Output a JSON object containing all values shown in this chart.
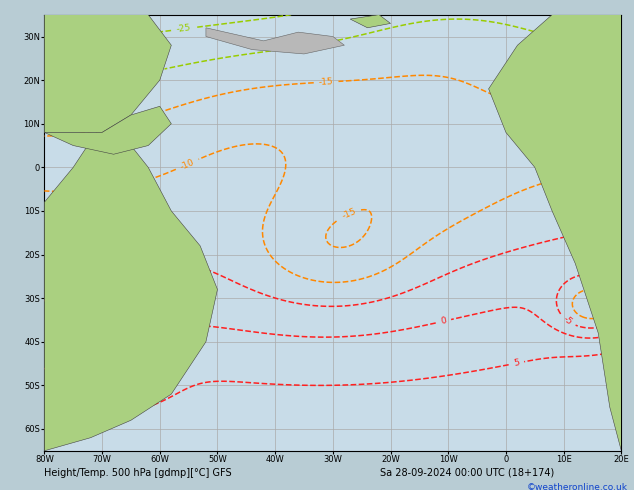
{
  "title_bottom": "Height/Temp. 500 hPa [gdmp][°C] GFS",
  "datetime_str": "Sa 28-09-2024 00:00 UTC (18+174)",
  "credit": "©weatheronline.co.uk",
  "bg_color": "#c8dce8",
  "land_green": "#aad080",
  "land_gray": "#b8b8b8",
  "grid_color": "#aaaaaa",
  "c_black": "#000000",
  "c_red": "#ff2020",
  "c_orange": "#ff8800",
  "c_cyan": "#00bbbb",
  "c_green_y": "#99cc00",
  "c_blue": "#2255ff",
  "xlim": [
    -80,
    20
  ],
  "ylim": [
    -65,
    35
  ],
  "xticks": [
    -80,
    -70,
    -60,
    -50,
    -40,
    -30,
    -20,
    -10,
    0,
    10,
    20
  ],
  "yticks": [
    -60,
    -50,
    -40,
    -30,
    -20,
    -10,
    0,
    10,
    20,
    30
  ],
  "xticklabels": [
    "80W",
    "70W",
    "60W",
    "50W",
    "40W",
    "30W",
    "20W",
    "10W",
    "0",
    "10E",
    "20E"
  ],
  "yticklabels": [
    "60S",
    "50S",
    "40S",
    "30S",
    "20S",
    "10S",
    "0",
    "10N",
    "20N",
    "30N"
  ],
  "figsize": [
    6.34,
    4.9
  ],
  "dpi": 100
}
